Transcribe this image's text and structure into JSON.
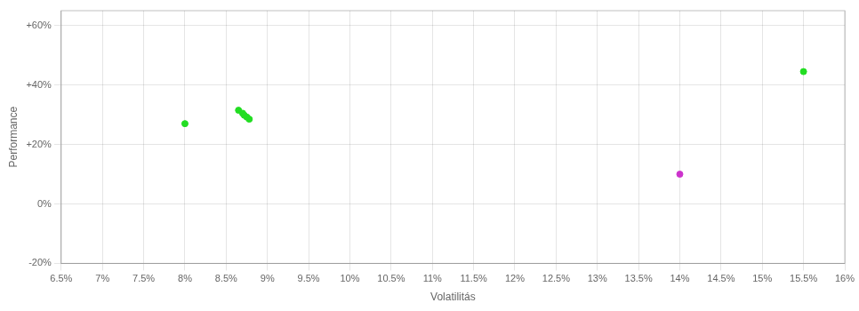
{
  "chart_data": {
    "type": "scatter",
    "xlabel": "Volatilitás",
    "ylabel": "Performance",
    "xlim": [
      0.065,
      0.16
    ],
    "ylim": [
      -0.2,
      0.65
    ],
    "xticks": [
      {
        "value": 0.065,
        "label": "6.5%"
      },
      {
        "value": 0.07,
        "label": "7%"
      },
      {
        "value": 0.075,
        "label": "7.5%"
      },
      {
        "value": 0.08,
        "label": "8%"
      },
      {
        "value": 0.085,
        "label": "8.5%"
      },
      {
        "value": 0.09,
        "label": "9%"
      },
      {
        "value": 0.095,
        "label": "9.5%"
      },
      {
        "value": 0.1,
        "label": "10%"
      },
      {
        "value": 0.105,
        "label": "10.5%"
      },
      {
        "value": 0.11,
        "label": "11%"
      },
      {
        "value": 0.115,
        "label": "11.5%"
      },
      {
        "value": 0.12,
        "label": "12%"
      },
      {
        "value": 0.125,
        "label": "12.5%"
      },
      {
        "value": 0.13,
        "label": "13%"
      },
      {
        "value": 0.135,
        "label": "13.5%"
      },
      {
        "value": 0.14,
        "label": "14%"
      },
      {
        "value": 0.145,
        "label": "14.5%"
      },
      {
        "value": 0.15,
        "label": "15%"
      },
      {
        "value": 0.155,
        "label": "15.5%"
      },
      {
        "value": 0.16,
        "label": "16%"
      }
    ],
    "yticks": [
      {
        "value": -0.2,
        "label": "-20%"
      },
      {
        "value": 0.0,
        "label": "0%"
      },
      {
        "value": 0.2,
        "label": "+20%"
      },
      {
        "value": 0.4,
        "label": "+40%"
      },
      {
        "value": 0.6,
        "label": "+60%"
      }
    ],
    "grid": true,
    "series": [
      {
        "color": "#22dd22",
        "x": [
          0.08,
          0.0865,
          0.087,
          0.0872,
          0.0875,
          0.0878,
          0.155
        ],
        "values": [
          0.27,
          0.315,
          0.305,
          0.298,
          0.292,
          0.285,
          0.445
        ]
      },
      {
        "color": "#cc33cc",
        "x": [
          0.14
        ],
        "values": [
          0.1
        ]
      }
    ]
  }
}
